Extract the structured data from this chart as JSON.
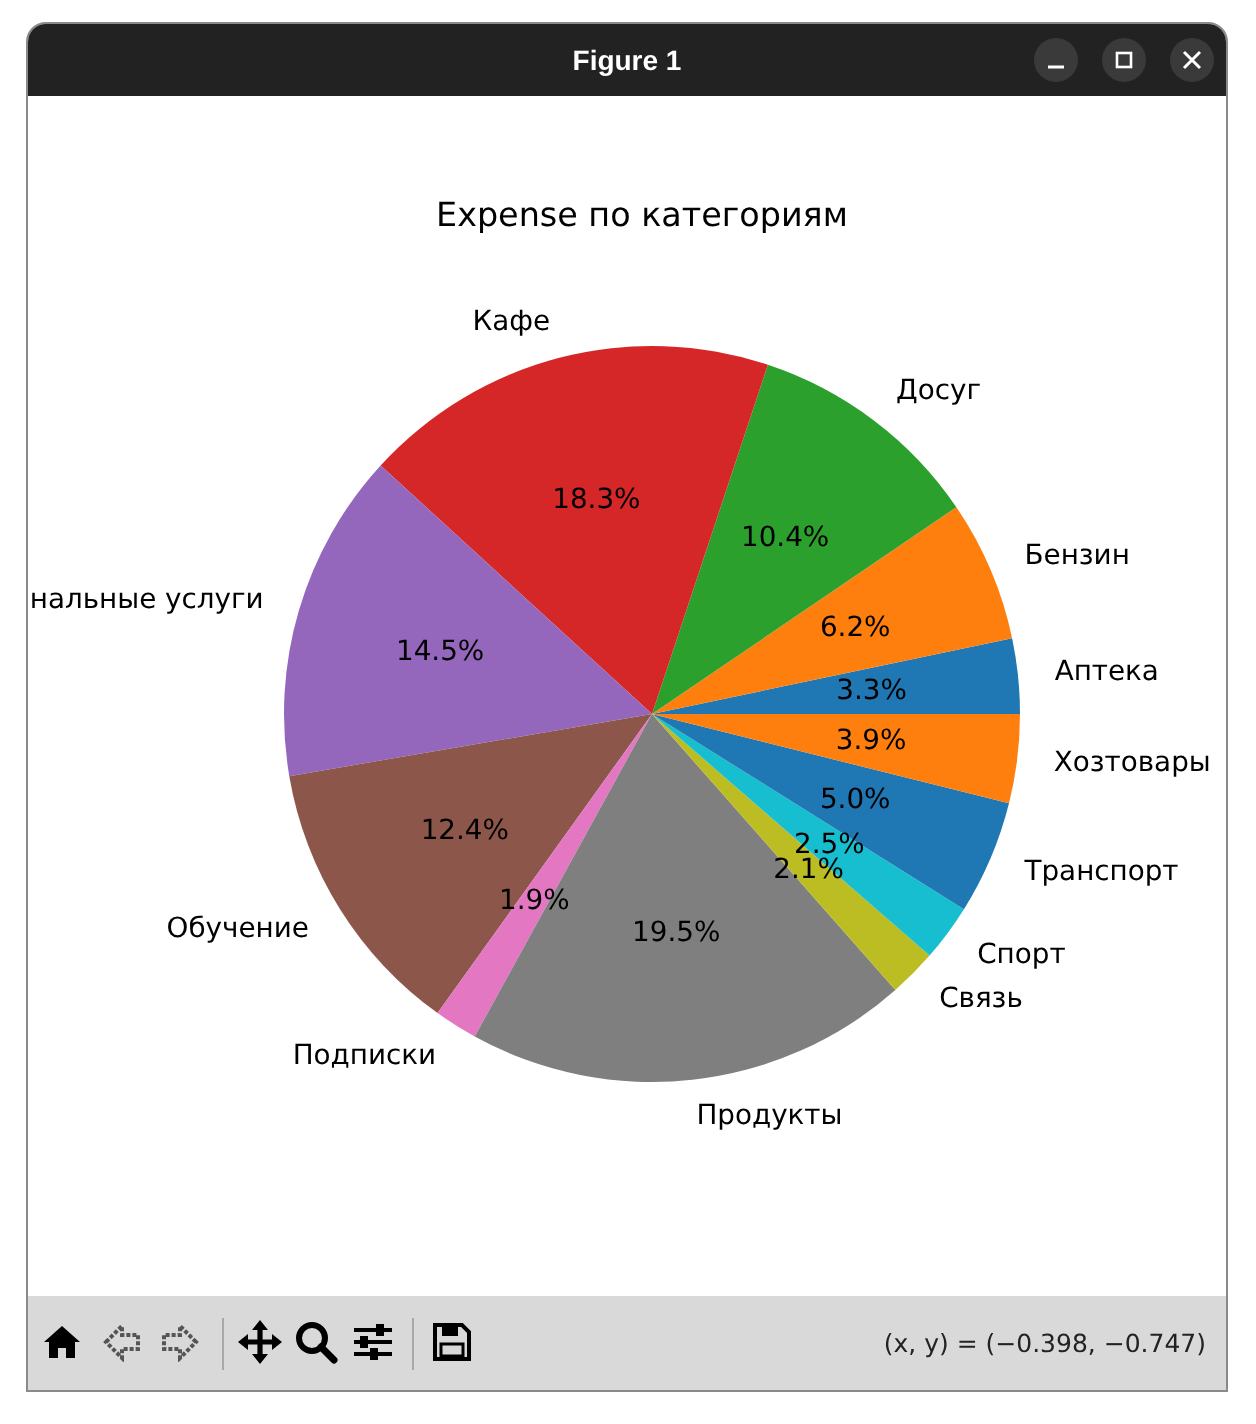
{
  "chart_data": {
    "type": "pie",
    "title": "Expense по категориям",
    "categories": [
      "Аптека",
      "Бензин",
      "Досуг",
      "Кафе",
      "нальные услуги",
      "Обучение",
      "Подписки",
      "Продукты",
      "Связь",
      "Спорт",
      "Транспорт",
      "Хозтовары"
    ],
    "values": [
      3.3,
      6.2,
      10.4,
      18.3,
      14.5,
      12.4,
      1.9,
      19.5,
      2.1,
      2.5,
      5.0,
      3.9
    ],
    "colors": [
      "#1f77b4",
      "#ff7f0e",
      "#2ca02c",
      "#d62728",
      "#9467bd",
      "#8c564b",
      "#e377c2",
      "#7f7f7f",
      "#bcbd22",
      "#17becf",
      "#1f77b4",
      "#ff7f0e"
    ],
    "value_labels": [
      "3.3%",
      "6.2%",
      "10.4%",
      "18.3%",
      "14.5%",
      "12.4%",
      "1.9%",
      "19.5%",
      "2.1%",
      "2.5%",
      "5.0%",
      "3.9%"
    ],
    "annotations": [
      "Figure 1",
      "(x, y) = (−0.398, −0.747)"
    ]
  }
}
